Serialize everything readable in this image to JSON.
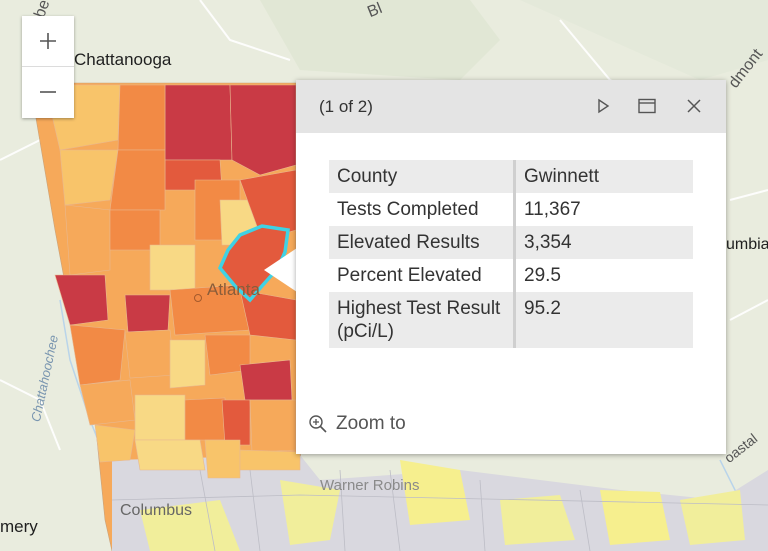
{
  "map": {
    "labels": {
      "chattanooga": "Chattanooga",
      "atlanta": "Atlanta",
      "columbus": "Columbus",
      "warner_robins": "Warner Robins",
      "columbia": "umbia",
      "montgomery": "mery",
      "chattahoochee": "Chattahoochee",
      "coastal": "oastal",
      "blue_ridge": "Bl",
      "piedmont": "dmont",
      "top_left": "be"
    },
    "colors": {
      "highlight": "#3fd2e4",
      "dark_red": "#c93a45",
      "red": "#e35a3d",
      "orange": "#f28a45",
      "light_orange": "#f6a95a",
      "yellow_orange": "#f8c46a",
      "pale_yellow": "#f8d985",
      "no_data": "#d9d8df",
      "pale_green_yellow": "#f1ee9b"
    }
  },
  "zoom_controls": {
    "zoom_in_icon": "plus-icon",
    "zoom_out_icon": "minus-icon"
  },
  "popup": {
    "title": "(1 of 2)",
    "icons": [
      "next-triangle-icon",
      "dock-window-icon",
      "close-icon"
    ],
    "rows": [
      {
        "label": "County",
        "value": "Gwinnett"
      },
      {
        "label": "Tests Completed",
        "value": "11,367"
      },
      {
        "label": "Elevated Results",
        "value": "3,354"
      },
      {
        "label": "Percent Elevated",
        "value": "29.5"
      },
      {
        "label": "Highest Test Result (pCi/L)",
        "value": "95.2"
      }
    ],
    "zoom_to_label": "Zoom to",
    "zoom_to_icon": "magnifier-plus-icon"
  }
}
